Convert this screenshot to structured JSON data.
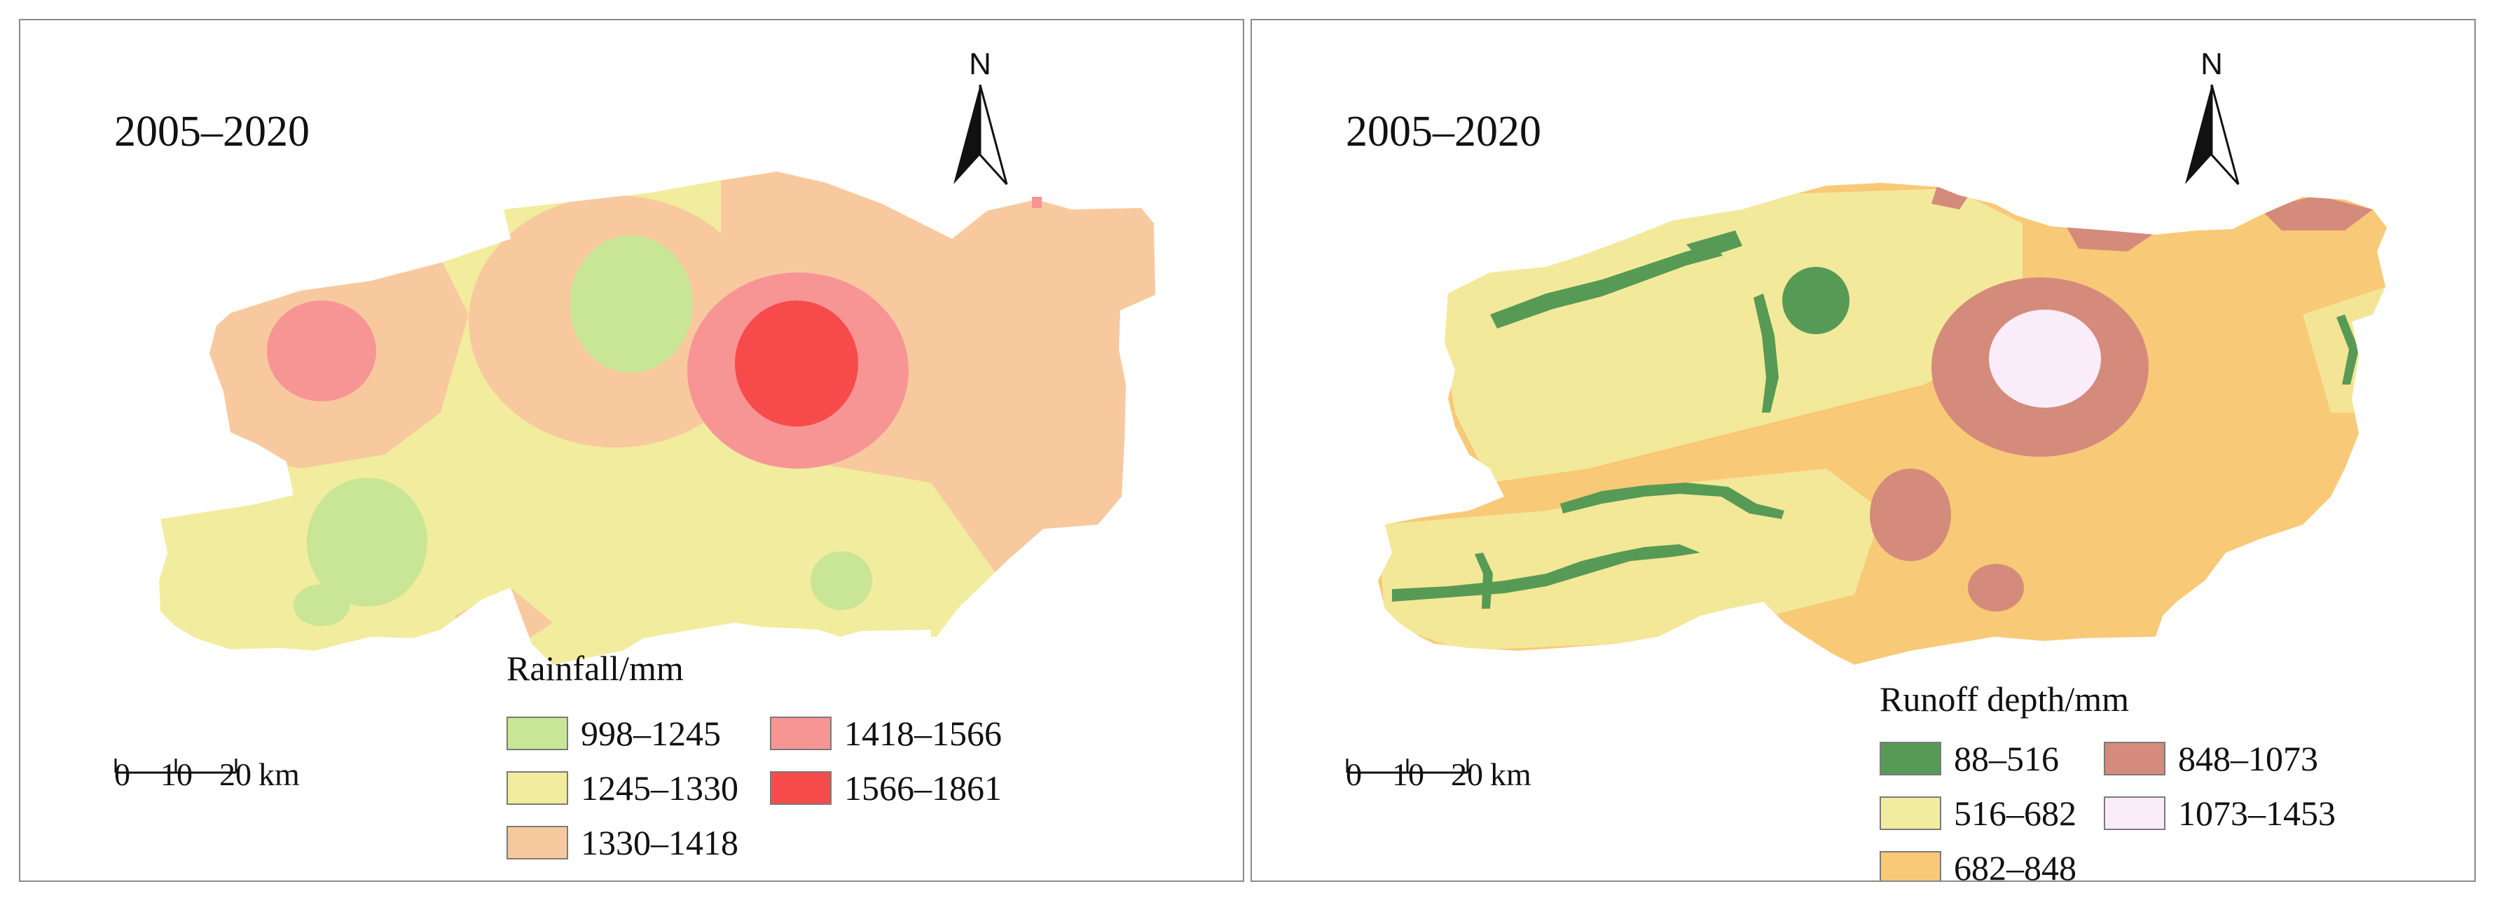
{
  "panels": [
    {
      "period": "2005–2020",
      "north_label": "N",
      "legend": {
        "title": "Rainfall/mm",
        "items": [
          {
            "label": "998–1245",
            "color": "#c9e596"
          },
          {
            "label": "1418–1566",
            "color": "#f79595"
          },
          {
            "label": "1245–1330",
            "color": "#f2ec9e"
          },
          {
            "label": "1566–1861",
            "color": "#f74b4b"
          },
          {
            "label": "1330–1418",
            "color": "#f8c99e"
          }
        ]
      },
      "scale": {
        "ticks": [
          "0",
          "10",
          "20"
        ],
        "unit": "km"
      }
    },
    {
      "period": "2005–2020",
      "north_label": "N",
      "legend": {
        "title": "Runoff depth/mm",
        "items": [
          {
            "label": "88–516",
            "color": "#579a55"
          },
          {
            "label": "848–1073",
            "color": "#d48b7b"
          },
          {
            "label": "516–682",
            "color": "#f2ec9e"
          },
          {
            "label": "1073–1453",
            "color": "#fbecfa"
          },
          {
            "label": "682–848",
            "color": "#f8c977"
          }
        ]
      },
      "scale": {
        "ticks": [
          "0",
          "10",
          "20"
        ],
        "unit": "km"
      }
    }
  ]
}
